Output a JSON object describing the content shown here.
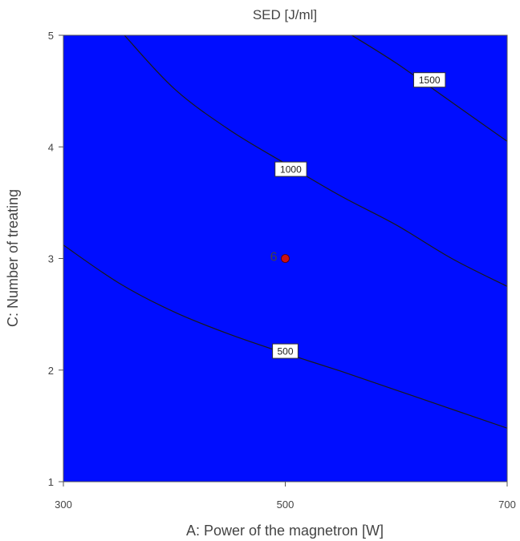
{
  "chart_data": {
    "type": "contour",
    "title": "SED [J/ml]",
    "xlabel": "A: Power of the magnetron [W]",
    "ylabel": "C: Number of treating",
    "xlim": [
      300,
      700
    ],
    "ylim": [
      1,
      5
    ],
    "x_ticks": [
      "300",
      "500",
      "700"
    ],
    "y_ticks": [
      "1",
      "2",
      "3",
      "4",
      "5"
    ],
    "contours": [
      {
        "label": "500",
        "label_at": {
          "x": 500,
          "y": 2.17
        },
        "points": [
          [
            300,
            3.12
          ],
          [
            350,
            2.78
          ],
          [
            400,
            2.52
          ],
          [
            450,
            2.32
          ],
          [
            500,
            2.15
          ],
          [
            550,
            1.99
          ],
          [
            600,
            1.82
          ],
          [
            650,
            1.65
          ],
          [
            700,
            1.48
          ]
        ]
      },
      {
        "label": "1000",
        "label_at": {
          "x": 505,
          "y": 3.8
        },
        "points": [
          [
            355,
            5.0
          ],
          [
            400,
            4.52
          ],
          [
            450,
            4.15
          ],
          [
            500,
            3.85
          ],
          [
            550,
            3.56
          ],
          [
            600,
            3.3
          ],
          [
            650,
            3.0
          ],
          [
            700,
            2.75
          ]
        ]
      },
      {
        "label": "1500",
        "label_at": {
          "x": 630,
          "y": 4.6
        },
        "points": [
          [
            560,
            5.0
          ],
          [
            600,
            4.75
          ],
          [
            650,
            4.4
          ],
          [
            700,
            4.05
          ]
        ]
      }
    ],
    "design_points": [
      {
        "x": 500,
        "y": 3,
        "label": "6",
        "color": "#cc1111"
      }
    ],
    "colors": {
      "low": "#0010ff",
      "mid_low": "#00ffff",
      "mid": "#00ff00",
      "mid_high": "#ffff00",
      "high": "#ff7f00",
      "contour_line": "#1a1a1a"
    }
  }
}
